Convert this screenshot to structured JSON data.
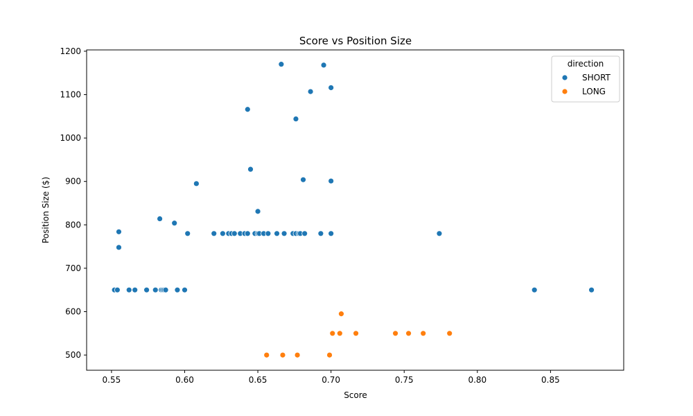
{
  "chart_data": {
    "type": "scatter",
    "title": "Score vs Position Size",
    "xlabel": "Score",
    "ylabel": "Position Size ($)",
    "xlim": [
      0.533,
      0.9
    ],
    "ylim": [
      465,
      1203
    ],
    "xticks": [
      "0.55",
      "0.60",
      "0.65",
      "0.70",
      "0.75",
      "0.80",
      "0.85"
    ],
    "yticks": [
      "500",
      "600",
      "700",
      "800",
      "900",
      "1000",
      "1100",
      "1200"
    ],
    "grid": false,
    "legend": {
      "title": "direction",
      "placement": "top-right"
    },
    "series": [
      {
        "name": "SHORT",
        "color": "#1f77b4",
        "points": [
          [
            0.666,
            1170
          ],
          [
            0.695,
            1168
          ],
          [
            0.7,
            1116
          ],
          [
            0.686,
            1107
          ],
          [
            0.643,
            1066
          ],
          [
            0.676,
            1044
          ],
          [
            0.645,
            928
          ],
          [
            0.681,
            904
          ],
          [
            0.7,
            901
          ],
          [
            0.608,
            895
          ],
          [
            0.65,
            831
          ],
          [
            0.583,
            814
          ],
          [
            0.593,
            804
          ],
          [
            0.555,
            784
          ],
          [
            0.555,
            748
          ],
          [
            0.602,
            780
          ],
          [
            0.62,
            780
          ],
          [
            0.626,
            780
          ],
          [
            0.63,
            780
          ],
          [
            0.632,
            780
          ],
          [
            0.634,
            780
          ],
          [
            0.638,
            780
          ],
          [
            0.641,
            780
          ],
          [
            0.643,
            780
          ],
          [
            0.648,
            780
          ],
          [
            0.65,
            780
          ],
          [
            0.651,
            780
          ],
          [
            0.654,
            780
          ],
          [
            0.657,
            780
          ],
          [
            0.663,
            780
          ],
          [
            0.668,
            780
          ],
          [
            0.674,
            780
          ],
          [
            0.676,
            780
          ],
          [
            0.678,
            780
          ],
          [
            0.679,
            780
          ],
          [
            0.682,
            780
          ],
          [
            0.693,
            780
          ],
          [
            0.7,
            780
          ],
          [
            0.774,
            780
          ],
          [
            0.552,
            650
          ],
          [
            0.554,
            650
          ],
          [
            0.562,
            650
          ],
          [
            0.566,
            650
          ],
          [
            0.574,
            650
          ],
          [
            0.58,
            650
          ],
          [
            0.584,
            650
          ],
          [
            0.585,
            650
          ],
          [
            0.586,
            650
          ],
          [
            0.587,
            650
          ],
          [
            0.595,
            650
          ],
          [
            0.6,
            650
          ],
          [
            0.839,
            650
          ],
          [
            0.878,
            650
          ]
        ]
      },
      {
        "name": "LONG",
        "color": "#ff7f0e",
        "points": [
          [
            0.707,
            595
          ],
          [
            0.701,
            550
          ],
          [
            0.706,
            550
          ],
          [
            0.717,
            550
          ],
          [
            0.744,
            550
          ],
          [
            0.753,
            550
          ],
          [
            0.763,
            550
          ],
          [
            0.781,
            550
          ],
          [
            0.656,
            500
          ],
          [
            0.667,
            500
          ],
          [
            0.677,
            500
          ],
          [
            0.699,
            500
          ]
        ]
      }
    ]
  }
}
